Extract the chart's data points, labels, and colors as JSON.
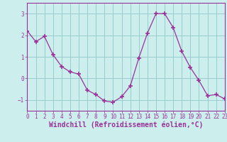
{
  "x": [
    0,
    1,
    2,
    3,
    4,
    5,
    6,
    7,
    8,
    9,
    10,
    11,
    12,
    13,
    14,
    15,
    16,
    17,
    18,
    19,
    20,
    21,
    22,
    23
  ],
  "y": [
    2.2,
    1.7,
    1.95,
    1.1,
    0.55,
    0.3,
    0.2,
    -0.55,
    -0.75,
    -1.05,
    -1.1,
    -0.85,
    -0.35,
    0.95,
    2.1,
    3.0,
    3.0,
    2.35,
    1.25,
    0.5,
    -0.1,
    -0.8,
    -0.75,
    -0.95
  ],
  "line_color": "#993399",
  "marker": "+",
  "marker_size": 4,
  "marker_lw": 1.2,
  "bg_color": "#cceeed",
  "grid_color": "#99cccc",
  "axis_color": "#993399",
  "xlabel": "Windchill (Refroidissement éolien,°C)",
  "xlabel_color": "#993399",
  "ylim": [
    -1.5,
    3.5
  ],
  "xlim": [
    0,
    23
  ],
  "yticks": [
    -1,
    0,
    1,
    2,
    3
  ],
  "xticks": [
    0,
    1,
    2,
    3,
    4,
    5,
    6,
    7,
    8,
    9,
    10,
    11,
    12,
    13,
    14,
    15,
    16,
    17,
    18,
    19,
    20,
    21,
    22,
    23
  ],
  "tick_label_size": 5.5,
  "xlabel_size": 7
}
